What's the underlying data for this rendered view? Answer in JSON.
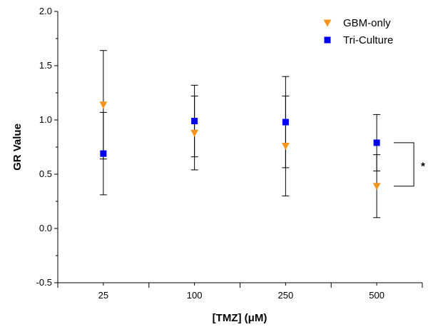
{
  "chart_data": {
    "type": "scatter",
    "title": "",
    "xlabel": "[TMZ] (μM)",
    "ylabel": "GR Value",
    "categories": [
      "25",
      "100",
      "250",
      "500"
    ],
    "ylim": [
      -0.5,
      2.0
    ],
    "yticks": [
      "-0.5",
      "0.0",
      "0.5",
      "1.0",
      "1.5",
      "2.0"
    ],
    "grid": false,
    "legend_position": "top-right",
    "series": [
      {
        "name": "GBM-only",
        "marker": "triangle-down",
        "color": "#f7941d",
        "values": [
          1.14,
          0.88,
          0.76,
          0.39
        ],
        "error": [
          0.5,
          0.34,
          0.46,
          0.29
        ]
      },
      {
        "name": "Tri-Culture",
        "marker": "square",
        "color": "#0000ee",
        "values": [
          0.69,
          0.99,
          0.98,
          0.79
        ],
        "error": [
          0.38,
          0.33,
          0.42,
          0.26
        ]
      }
    ],
    "annotations": [
      {
        "text": "*",
        "between_category": "500"
      }
    ]
  }
}
